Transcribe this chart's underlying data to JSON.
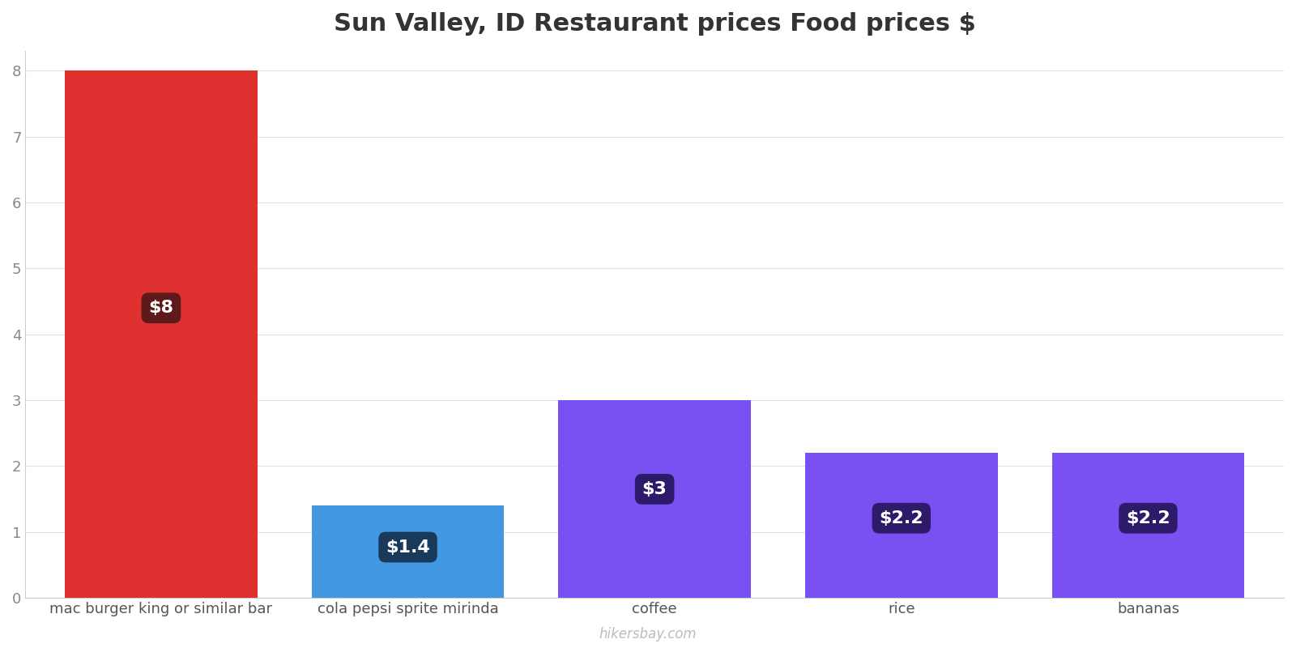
{
  "title": "Sun Valley, ID Restaurant prices Food prices $",
  "categories": [
    "mac burger king or similar bar",
    "cola pepsi sprite mirinda",
    "coffee",
    "rice",
    "bananas"
  ],
  "values": [
    8,
    1.4,
    3,
    2.2,
    2.2
  ],
  "labels": [
    "$8",
    "$1.4",
    "$3",
    "$2.2",
    "$2.2"
  ],
  "bar_colors": [
    "#e03131",
    "#4299e1",
    "#7950f2",
    "#7950f2",
    "#7950f2"
  ],
  "label_bg_colors": [
    "#5c1a1a",
    "#1a3a5c",
    "#2d1b69",
    "#2d1b69",
    "#2d1b69"
  ],
  "ylim": [
    0,
    8.3
  ],
  "yticks": [
    0,
    1,
    2,
    3,
    4,
    5,
    6,
    7,
    8
  ],
  "watermark": "hikersbay.com",
  "title_fontsize": 22,
  "tick_fontsize": 13,
  "label_fontsize": 16,
  "background_color": "#ffffff",
  "grid_color": "#e0e0e0",
  "bar_width": 0.78
}
